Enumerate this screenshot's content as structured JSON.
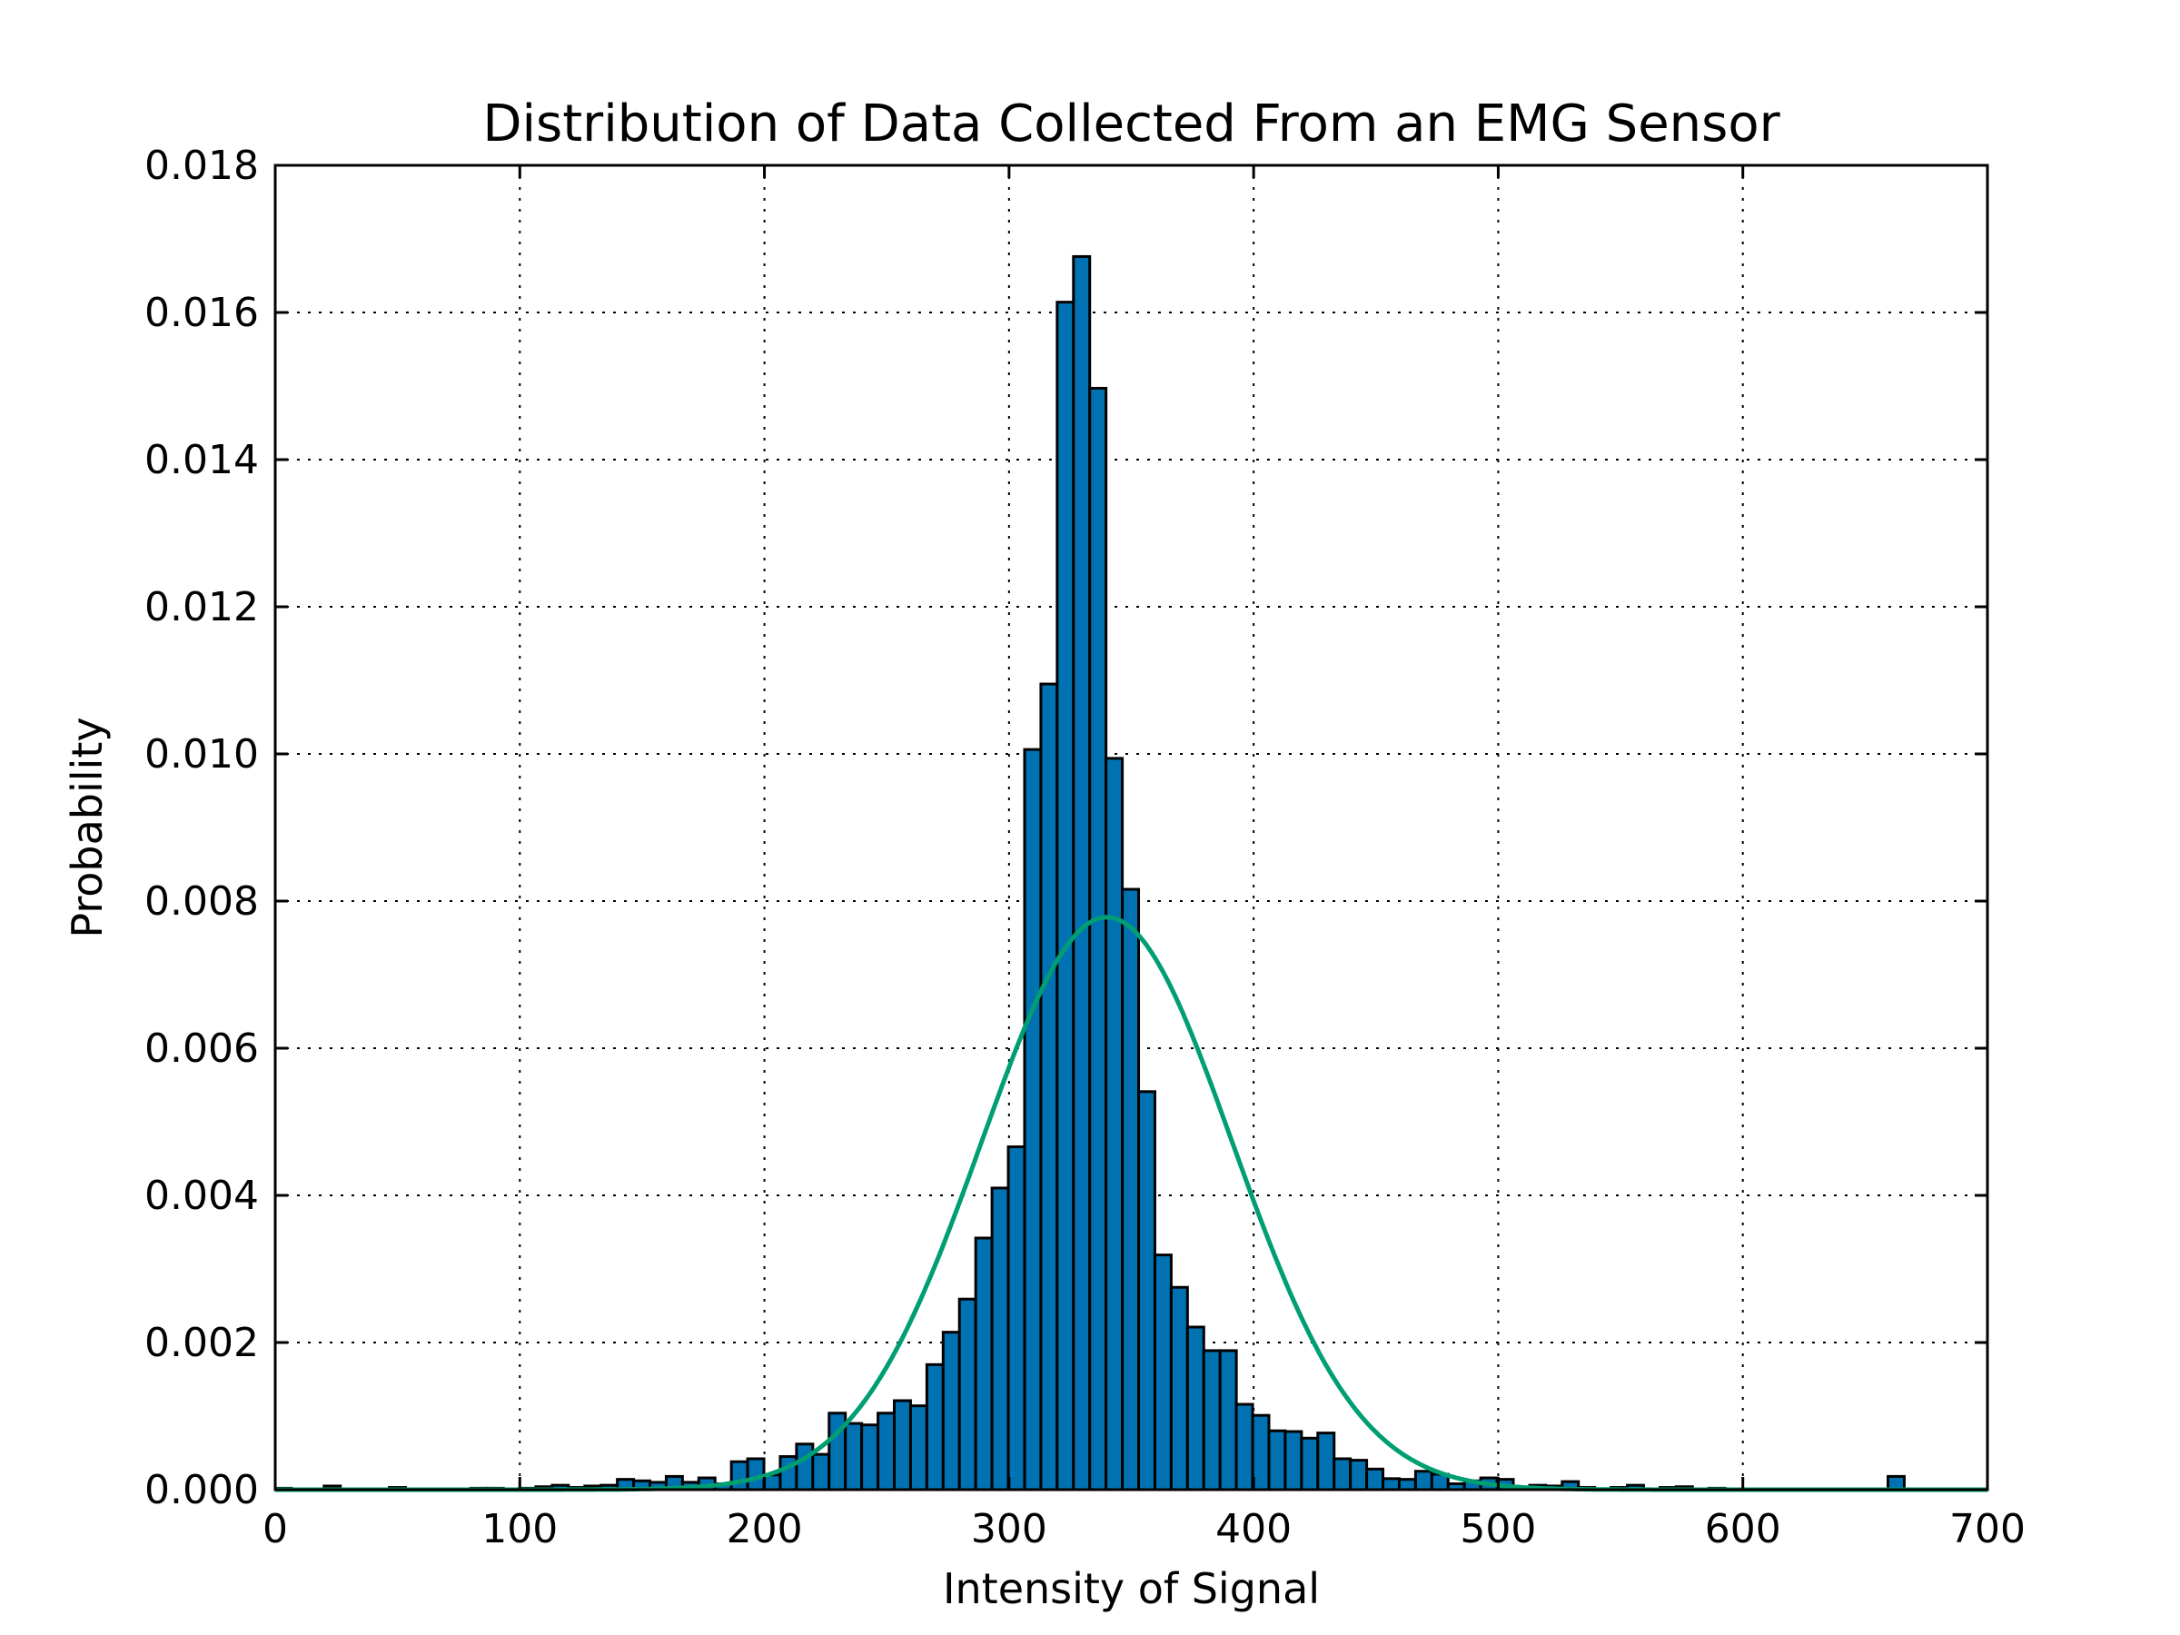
{
  "chart_data": {
    "type": "bar",
    "title": "Distribution of Data Collected From an EMG Sensor",
    "xlabel": "Intensity of Signal",
    "ylabel": "Probability",
    "xlim": [
      0,
      700
    ],
    "ylim": [
      0,
      0.018
    ],
    "x_ticks": [
      "0",
      "100",
      "200",
      "300",
      "400",
      "500",
      "600",
      "700"
    ],
    "y_ticks": [
      "0.000",
      "0.002",
      "0.004",
      "0.006",
      "0.008",
      "0.010",
      "0.012",
      "0.014",
      "0.016",
      "0.018"
    ],
    "grid": true,
    "grid_style": "dotted",
    "bin_width": 6.66,
    "bins_start": 0,
    "values": [
      2e-05,
      0,
      0,
      5e-05,
      0,
      0,
      0,
      3e-05,
      1e-05,
      0,
      0,
      1e-05,
      2e-05,
      2e-05,
      1e-05,
      2e-05,
      4e-05,
      6e-05,
      3e-05,
      5e-05,
      6e-05,
      0.00014,
      0.00012,
      0.0001,
      0.00018,
      0.0001,
      0.00016,
      8e-05,
      0.00038,
      0.00042,
      0.0002,
      0.00045,
      0.00062,
      0.00048,
      0.00104,
      0.0009,
      0.00088,
      0.00104,
      0.00121,
      0.00114,
      0.0017,
      0.00214,
      0.00259,
      0.00342,
      0.0041,
      0.00466,
      0.01006,
      0.01095,
      0.01614,
      0.01676,
      0.01497,
      0.00994,
      0.00816,
      0.00541,
      0.00319,
      0.00275,
      0.00221,
      0.00189,
      0.00189,
      0.00116,
      0.00101,
      0.0008,
      0.00079,
      0.0007,
      0.00077,
      0.00042,
      0.0004,
      0.00028,
      0.00015,
      0.00014,
      0.00025,
      0.00021,
      8e-05,
      0.00012,
      0.00016,
      0.00014,
      3e-05,
      6e-05,
      5e-05,
      0.00011,
      3e-05,
      1e-05,
      3e-05,
      6e-05,
      1e-05,
      3e-05,
      4e-05,
      1e-05,
      2e-05,
      0,
      0,
      0,
      0,
      0,
      0,
      0,
      0,
      0,
      0,
      0.00018
    ],
    "bar_color": "#0072B2",
    "bar_edge_color": "#000000",
    "fit_curve": {
      "type": "normal",
      "mean": 340,
      "std": 51.3,
      "peak": 0.00778,
      "color": "#009E73"
    }
  }
}
